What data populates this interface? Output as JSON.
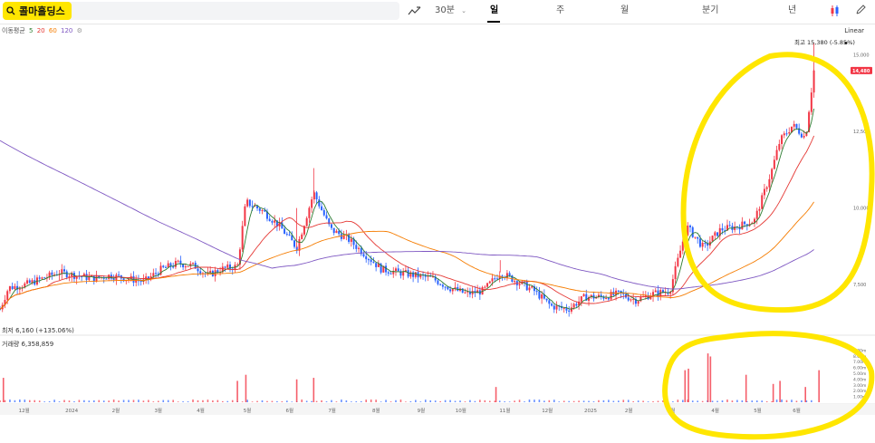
{
  "toolbar": {
    "stock_name": "콜마홀딩스",
    "interval": "30분",
    "periods": [
      {
        "label": "일",
        "active": true
      },
      {
        "label": "주",
        "active": false
      },
      {
        "label": "월",
        "active": false
      },
      {
        "label": "분기",
        "active": false
      },
      {
        "label": "년",
        "active": false
      }
    ]
  },
  "ma_legend": {
    "title": "이동평균",
    "periods": [
      "5",
      "20",
      "60",
      "120"
    ]
  },
  "scale_mode": "Linear",
  "colors": {
    "up": "#f23645",
    "down": "#2962ff",
    "ma5": "#2e7d32",
    "ma20": "#e53935",
    "ma60": "#f57c00",
    "ma120": "#7e57c2",
    "highlight": "#ffe600"
  },
  "chart_data": {
    "type": "candlestick",
    "high_label": "최고 15,380 (-5.85%)",
    "low_label": "최저 6,160 (+135.06%)",
    "current_price": "14,480",
    "volume_label": "거래량 6,358,859",
    "y_ticks": [
      "15,000",
      "12,500",
      "10,000",
      "7,500"
    ],
    "y_values": [
      15000,
      12500,
      10000,
      7500
    ],
    "volume_ticks": [
      "9.00m",
      "8.00m",
      "7.00m",
      "6.00m",
      "5.00m",
      "4.00m",
      "3.00m",
      "2.00m",
      "1.00m"
    ],
    "x_labels": [
      "12월",
      "2024",
      "2월",
      "3월",
      "4월",
      "5월",
      "6월",
      "7월",
      "8월",
      "9월",
      "10월",
      "11월",
      "12월",
      "2025",
      "2월",
      "3월",
      "4월",
      "5월",
      "6월"
    ],
    "x_label_positions": [
      0.005,
      0.06,
      0.115,
      0.165,
      0.215,
      0.27,
      0.32,
      0.37,
      0.422,
      0.475,
      0.52,
      0.572,
      0.622,
      0.672,
      0.72,
      0.77,
      0.822,
      0.872,
      0.918
    ],
    "price_path": [
      [
        0.0,
        6700
      ],
      [
        0.01,
        7400
      ],
      [
        0.03,
        7500
      ],
      [
        0.05,
        7700
      ],
      [
        0.07,
        7900
      ],
      [
        0.09,
        7800
      ],
      [
        0.11,
        7700
      ],
      [
        0.13,
        7800
      ],
      [
        0.15,
        7700
      ],
      [
        0.17,
        7600
      ],
      [
        0.19,
        8000
      ],
      [
        0.21,
        8200
      ],
      [
        0.23,
        8100
      ],
      [
        0.245,
        7800
      ],
      [
        0.26,
        8000
      ],
      [
        0.28,
        8100
      ],
      [
        0.29,
        10200
      ],
      [
        0.31,
        9900
      ],
      [
        0.33,
        9400
      ],
      [
        0.35,
        8700
      ],
      [
        0.37,
        10500
      ],
      [
        0.39,
        9300
      ],
      [
        0.41,
        9000
      ],
      [
        0.43,
        8500
      ],
      [
        0.45,
        8000
      ],
      [
        0.47,
        7900
      ],
      [
        0.49,
        7800
      ],
      [
        0.51,
        7700
      ],
      [
        0.53,
        7400
      ],
      [
        0.55,
        7200
      ],
      [
        0.57,
        7300
      ],
      [
        0.59,
        7900
      ],
      [
        0.61,
        7600
      ],
      [
        0.63,
        7300
      ],
      [
        0.65,
        6800
      ],
      [
        0.67,
        6700
      ],
      [
        0.69,
        7100
      ],
      [
        0.71,
        7100
      ],
      [
        0.73,
        7200
      ],
      [
        0.75,
        7000
      ],
      [
        0.77,
        7200
      ],
      [
        0.79,
        7300
      ],
      [
        0.81,
        9400
      ],
      [
        0.83,
        8700
      ],
      [
        0.85,
        9300
      ],
      [
        0.87,
        9400
      ],
      [
        0.89,
        9600
      ],
      [
        0.91,
        11200
      ],
      [
        0.92,
        12200
      ],
      [
        0.935,
        12700
      ],
      [
        0.95,
        12300
      ],
      [
        0.96,
        14480
      ]
    ],
    "volume_spikes": [
      [
        0.004,
        1.6
      ],
      [
        0.28,
        1.4
      ],
      [
        0.29,
        1.8
      ],
      [
        0.35,
        1.5
      ],
      [
        0.37,
        1.6
      ],
      [
        0.585,
        1.0
      ],
      [
        0.808,
        2.1
      ],
      [
        0.812,
        2.2
      ],
      [
        0.835,
        3.2
      ],
      [
        0.838,
        3.0
      ],
      [
        0.88,
        1.8
      ],
      [
        0.912,
        1.2
      ],
      [
        0.92,
        1.4
      ],
      [
        0.95,
        1.0
      ],
      [
        0.966,
        2.1
      ]
    ]
  }
}
